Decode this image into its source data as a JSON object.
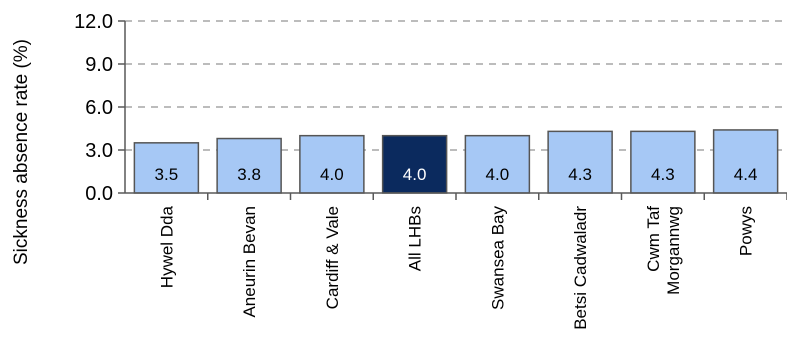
{
  "chart_data": {
    "type": "bar",
    "ylabel": "Sickness absence rate (%)",
    "ylim": [
      0,
      12
    ],
    "yticks": [
      "0.0",
      "3.0",
      "6.0",
      "9.0",
      "12.0"
    ],
    "grid": true,
    "categories": [
      [
        "Hywel Dda"
      ],
      [
        "Aneurin Bevan"
      ],
      [
        "Cardiff & Vale"
      ],
      [
        "All LHBs"
      ],
      [
        "Swansea Bay"
      ],
      [
        "Betsi Cadwaladr"
      ],
      [
        "Cwm Taf",
        "Morgannwg"
      ],
      [
        "Powys"
      ]
    ],
    "values": [
      3.5,
      3.8,
      4.0,
      4.0,
      4.0,
      4.3,
      4.3,
      4.4
    ],
    "data_labels": [
      "3.5",
      "3.8",
      "4.0",
      "4.0",
      "4.0",
      "4.3",
      "4.3",
      "4.4"
    ],
    "highlight_index": 3,
    "colors": {
      "bar_fill": "#a6c8f5",
      "highlight_fill": "#0b2a5e",
      "bar_stroke": "#555555",
      "grid": "#a6a6a6",
      "axis": "#595959",
      "label_dark": "#000000",
      "label_light": "#ffffff"
    }
  }
}
